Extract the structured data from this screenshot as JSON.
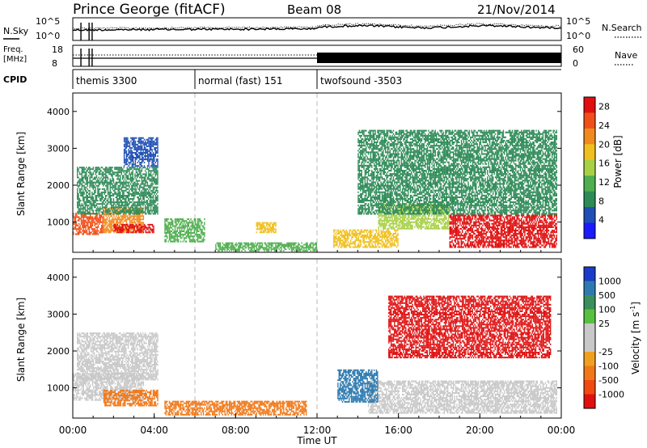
{
  "header": {
    "station": "Prince George (fitACF)",
    "beam": "Beam 08",
    "date": "21/Nov/2014"
  },
  "noise_panel": {
    "left_label": "N.Sky",
    "right_label": "N.Search",
    "left_ticks": [
      "10^5",
      "10^0"
    ],
    "right_ticks": [
      "10^5",
      "10^0"
    ]
  },
  "freq_panel": {
    "left_label_1": "Freq.",
    "left_label_2": "[MHz]",
    "left_ticks": [
      "18",
      "8"
    ],
    "right_label": "Nave",
    "right_ticks": [
      "60",
      "0"
    ]
  },
  "cpid": {
    "label": "CPID",
    "modes": [
      {
        "name": "themis 3300",
        "start_hour": 0,
        "end_hour": 6
      },
      {
        "name": "normal (fast) 151",
        "start_hour": 6,
        "end_hour": 12
      },
      {
        "name": "twofsound -3503",
        "start_hour": 12,
        "end_hour": 24
      }
    ]
  },
  "colors": {
    "power_scale": [
      "#1a1aff",
      "#1f4fb4",
      "#2e8b57",
      "#4fae4f",
      "#a8d046",
      "#f0c020",
      "#f08a1e",
      "#f05018",
      "#e01010"
    ],
    "velocity_scale": [
      "#1a3cc8",
      "#2e7ab0",
      "#3a8f5a",
      "#58c040",
      "#c8c8c8",
      "#c8c8c8",
      "#f0a020",
      "#f07818",
      "#f04a10",
      "#e01010"
    ]
  },
  "chart_data": [
    {
      "type": "heatmap",
      "title": "Power",
      "ylabel": "Slant Range [km]",
      "xlabel": "",
      "x_range_hours": [
        0,
        24
      ],
      "ylim": [
        180,
        4500
      ],
      "y_ticks": [
        1000,
        2000,
        3000,
        4000
      ],
      "colorbar": {
        "label": "Power [dB]",
        "ticks": [
          4,
          8,
          12,
          16,
          20,
          24,
          28
        ],
        "range": [
          0,
          30
        ]
      },
      "regions": [
        {
          "t0": 0.0,
          "t1": 1.5,
          "r0": 650,
          "r1": 1250,
          "level": 26
        },
        {
          "t0": 1.5,
          "t1": 3.5,
          "r0": 700,
          "r1": 1400,
          "level": 22
        },
        {
          "t0": 2.0,
          "t1": 4.0,
          "r0": 700,
          "r1": 950,
          "level": 29
        },
        {
          "t0": 0.2,
          "t1": 4.2,
          "r0": 1200,
          "r1": 2500,
          "level": 8
        },
        {
          "t0": 2.5,
          "t1": 4.2,
          "r0": 2500,
          "r1": 3300,
          "level": 6
        },
        {
          "t0": 4.5,
          "t1": 6.5,
          "r0": 450,
          "r1": 1100,
          "level": 12
        },
        {
          "t0": 7.0,
          "t1": 12.0,
          "r0": 200,
          "r1": 450,
          "level": 10
        },
        {
          "t0": 9.0,
          "t1": 10.0,
          "r0": 700,
          "r1": 1000,
          "level": 17
        },
        {
          "t0": 12.8,
          "t1": 16.0,
          "r0": 300,
          "r1": 800,
          "level": 19
        },
        {
          "t0": 15.0,
          "t1": 18.5,
          "r0": 800,
          "r1": 1500,
          "level": 16
        },
        {
          "t0": 14.0,
          "t1": 23.8,
          "r0": 1200,
          "r1": 3500,
          "level": 7
        },
        {
          "t0": 18.5,
          "t1": 23.8,
          "r0": 300,
          "r1": 1200,
          "level": 29
        }
      ]
    },
    {
      "type": "heatmap",
      "title": "Velocity",
      "ylabel": "Slant Range [km]",
      "xlabel": "Time UT",
      "x_range_hours": [
        0,
        24
      ],
      "x_ticks": [
        "00:00",
        "04:00",
        "08:00",
        "12:00",
        "16:00",
        "20:00",
        "00:00"
      ],
      "ylim": [
        180,
        4500
      ],
      "y_ticks": [
        1000,
        2000,
        3000,
        4000
      ],
      "colorbar": {
        "label": "Velocity [m s^-1]",
        "ticks": [
          "1000",
          "500",
          "100",
          "25",
          "-25",
          "-100",
          "-500",
          "-1000"
        ]
      },
      "regions": [
        {
          "t0": 0.0,
          "t1": 3.5,
          "r0": 650,
          "r1": 1400,
          "velocity": 0
        },
        {
          "t0": 1.5,
          "t1": 4.2,
          "r0": 500,
          "r1": 950,
          "velocity": -150
        },
        {
          "t0": 0.2,
          "t1": 4.2,
          "r0": 1200,
          "r1": 2500,
          "velocity": 0
        },
        {
          "t0": 4.5,
          "t1": 11.5,
          "r0": 250,
          "r1": 650,
          "velocity": -100
        },
        {
          "t0": 14.5,
          "t1": 23.8,
          "r0": 300,
          "r1": 1200,
          "velocity": 0
        },
        {
          "t0": 15.5,
          "t1": 23.5,
          "r0": 1800,
          "r1": 3500,
          "velocity": -500
        },
        {
          "t0": 13.0,
          "t1": 15.0,
          "r0": 600,
          "r1": 1500,
          "velocity": 100
        }
      ]
    }
  ]
}
